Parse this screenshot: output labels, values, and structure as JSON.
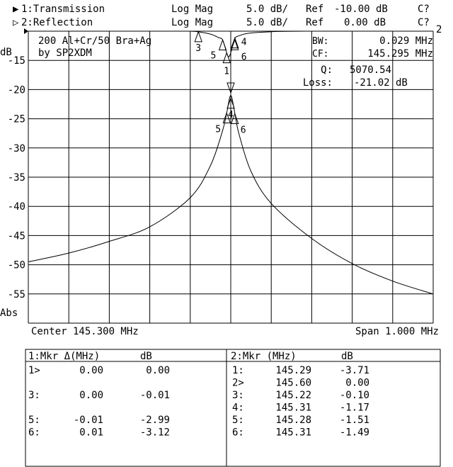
{
  "header": {
    "ch1": {
      "marker": "▶",
      "label": "1:Transmission",
      "format": "Log Mag",
      "scale": "5.0 dB/",
      "ref_label": "Ref",
      "ref": "-10.00 dB",
      "status": "C?"
    },
    "ch2": {
      "marker": "▷",
      "label": "2:Reflection",
      "format": "Log Mag",
      "scale": "5.0 dB/",
      "ref_label": "Ref",
      "ref": "0.00 dB",
      "status": "C?"
    }
  },
  "annotations": {
    "title_line1": "200 Al+Cr/50 Bra+Ag",
    "title_line2": "by SP2XDM",
    "bw_label": "BW:",
    "bw_value": "0.029 MHz",
    "cf_label": "CF:",
    "cf_value": "145.295 MHz",
    "q_label": "Q:",
    "q_value": "5070.54",
    "loss_label": "Loss:",
    "loss_value": "-21.02 dB"
  },
  "footer": {
    "center": "Center 145.300 MHz",
    "span": "Span 1.000 MHz"
  },
  "chart_data": {
    "type": "line",
    "ylabel": "dB",
    "ylabel_bottom": "Abs",
    "ylim": [
      -60,
      -10
    ],
    "xlim": [
      144.8,
      145.8
    ],
    "yticks": [
      "-15",
      "-20",
      "-25",
      "-30",
      "-35",
      "-40",
      "-45",
      "-50",
      "-55"
    ],
    "grid": true,
    "series": [
      {
        "name": "1:Transmission",
        "ref_db": -10,
        "x": [
          144.8,
          144.9,
          145.0,
          145.1,
          145.2,
          145.25,
          145.28,
          145.29,
          145.3,
          145.31,
          145.32,
          145.35,
          145.4,
          145.5,
          145.6,
          145.7,
          145.8
        ],
        "y": [
          -49.5,
          -48,
          -46,
          -43.5,
          -38.5,
          -33,
          -27,
          -24,
          -21,
          -24,
          -27.5,
          -34,
          -39.5,
          -45.5,
          -49.8,
          -52.8,
          -55
        ]
      },
      {
        "name": "2:Reflection",
        "ref_db": 0,
        "x": [
          145.2,
          145.22,
          145.25,
          145.27,
          145.28,
          145.29,
          145.295,
          145.3,
          145.31,
          145.32,
          145.34,
          145.37,
          145.42,
          145.5
        ],
        "y": [
          0,
          -0.1,
          -0.5,
          -1.1,
          -1.51,
          -3.71,
          -4.4,
          -3.7,
          -1.3,
          -0.8,
          -0.4,
          -0.2,
          -0.05,
          0
        ]
      }
    ],
    "markers_trace1": [
      {
        "id": "1",
        "x": 145.3,
        "y": -21.02
      },
      {
        "id": "3",
        "x": 145.3,
        "y": -21.03
      },
      {
        "id": "4",
        "x": 145.3,
        "y": -21.5
      },
      {
        "id": "5",
        "x": 145.29,
        "y": -24.01
      },
      {
        "id": "6",
        "x": 145.31,
        "y": -24.14
      }
    ],
    "markers_trace2": [
      {
        "id": "1",
        "x": 145.29,
        "y": -3.71
      },
      {
        "id": "2",
        "x": 145.6,
        "y": 0.0
      },
      {
        "id": "3",
        "x": 145.22,
        "y": -0.1
      },
      {
        "id": "4",
        "x": 145.31,
        "y": -1.17
      },
      {
        "id": "5",
        "x": 145.28,
        "y": -1.51
      },
      {
        "id": "6",
        "x": 145.31,
        "y": -1.49
      }
    ]
  },
  "table1": {
    "header": [
      "1:Mkr Δ(MHz)",
      "dB"
    ],
    "rows": [
      [
        "1>",
        "0.00",
        "0.00"
      ],
      [
        "",
        "",
        ""
      ],
      [
        "3:",
        "0.00",
        "-0.01"
      ],
      [
        "",
        "",
        ""
      ],
      [
        "5:",
        "-0.01",
        "-2.99"
      ],
      [
        "6:",
        "0.01",
        "-3.12"
      ]
    ]
  },
  "table2": {
    "header": [
      "2:Mkr (MHz)",
      "dB"
    ],
    "rows": [
      [
        "1:",
        "145.29",
        "-3.71"
      ],
      [
        "2>",
        "145.60",
        "0.00"
      ],
      [
        "3:",
        "145.22",
        "-0.10"
      ],
      [
        "4:",
        "145.31",
        "-1.17"
      ],
      [
        "5:",
        "145.28",
        "-1.51"
      ],
      [
        "6:",
        "145.31",
        "-1.49"
      ]
    ]
  }
}
